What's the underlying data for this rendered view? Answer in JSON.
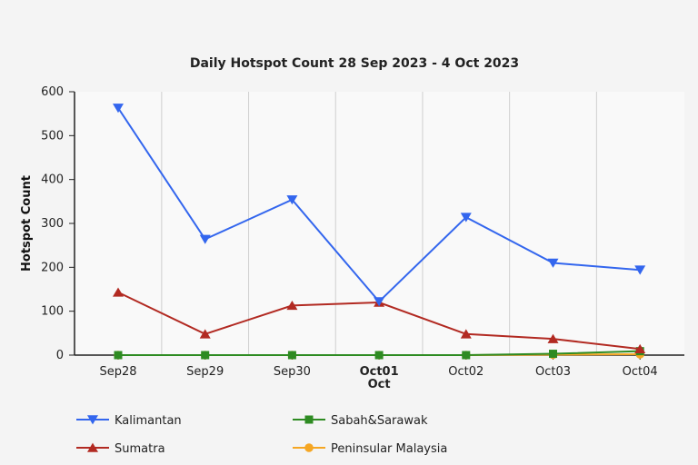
{
  "chart_data": {
    "type": "line",
    "title": "Daily Hotspot Count 28 Sep 2023 - 4 Oct 2023",
    "ylabel": "Hotspot Count",
    "xlabel": "",
    "categories": [
      "Sep28",
      "Sep29",
      "Sep30",
      "Oct01",
      "Oct02",
      "Oct03",
      "Oct04"
    ],
    "highlight_category": {
      "label": "Oct01",
      "sublabel": "Oct"
    },
    "ylim": [
      0,
      600
    ],
    "yticks": [
      0,
      100,
      200,
      300,
      400,
      500,
      600
    ],
    "grid": {
      "vertical": true,
      "horizontal": false
    },
    "legend_placement": "bottom",
    "series": [
      {
        "name": "Kalimantan",
        "color": "#3366ee",
        "marker": "triangle-down",
        "values": [
          563,
          264,
          354,
          122,
          314,
          210,
          194
        ]
      },
      {
        "name": "Sumatra",
        "color": "#b22a22",
        "marker": "triangle-up",
        "values": [
          143,
          48,
          113,
          120,
          48,
          37,
          14
        ]
      },
      {
        "name": "Sabah&Sarawak",
        "color": "#2e8b22",
        "marker": "square",
        "values": [
          0,
          0,
          0,
          0,
          0,
          3,
          9
        ]
      },
      {
        "name": "Peninsular Malaysia",
        "color": "#f5a623",
        "marker": "circle",
        "values": [
          0,
          0,
          0,
          0,
          0,
          1,
          2
        ]
      }
    ]
  }
}
